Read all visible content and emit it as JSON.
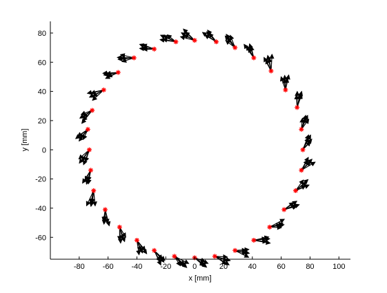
{
  "chart_data": {
    "type": "scatter",
    "title": "",
    "xlabel": "x [mm]",
    "ylabel": "y [mm]",
    "xlim": [
      -100,
      108
    ],
    "ylim": [
      -75,
      88
    ],
    "xticks": [
      -80,
      -60,
      -40,
      -20,
      0,
      20,
      40,
      60,
      80,
      100
    ],
    "yticks": [
      -60,
      -40,
      -20,
      0,
      20,
      40,
      60,
      80
    ],
    "grid": false,
    "colors": {
      "marker": "#ff0000",
      "arrow": "#000000",
      "axis": "#000000"
    },
    "series": [
      {
        "marker": "star",
        "points": [
          [
            -74,
            14
          ],
          [
            -73,
            0
          ],
          [
            -72,
            -14
          ],
          [
            -70,
            -28
          ],
          [
            -62,
            -41
          ],
          [
            -52,
            -53
          ],
          [
            -40,
            -62
          ],
          [
            -28,
            -69
          ],
          [
            -14,
            -73
          ],
          [
            0,
            -74
          ],
          [
            14,
            -73
          ],
          [
            28,
            -69
          ],
          [
            41,
            -62
          ],
          [
            52,
            -53
          ],
          [
            62,
            -41
          ],
          [
            70,
            -28
          ],
          [
            74,
            -14
          ],
          [
            75,
            0
          ],
          [
            74,
            14
          ],
          [
            71,
            29
          ],
          [
            63,
            41
          ],
          [
            53,
            54
          ],
          [
            41,
            63
          ],
          [
            28,
            70
          ],
          [
            15,
            74
          ],
          [
            0,
            75
          ],
          [
            -13,
            74
          ],
          [
            -28,
            69
          ],
          [
            -42,
            63
          ],
          [
            -53,
            53
          ],
          [
            -63,
            41
          ],
          [
            -71,
            27
          ]
        ]
      }
    ]
  }
}
